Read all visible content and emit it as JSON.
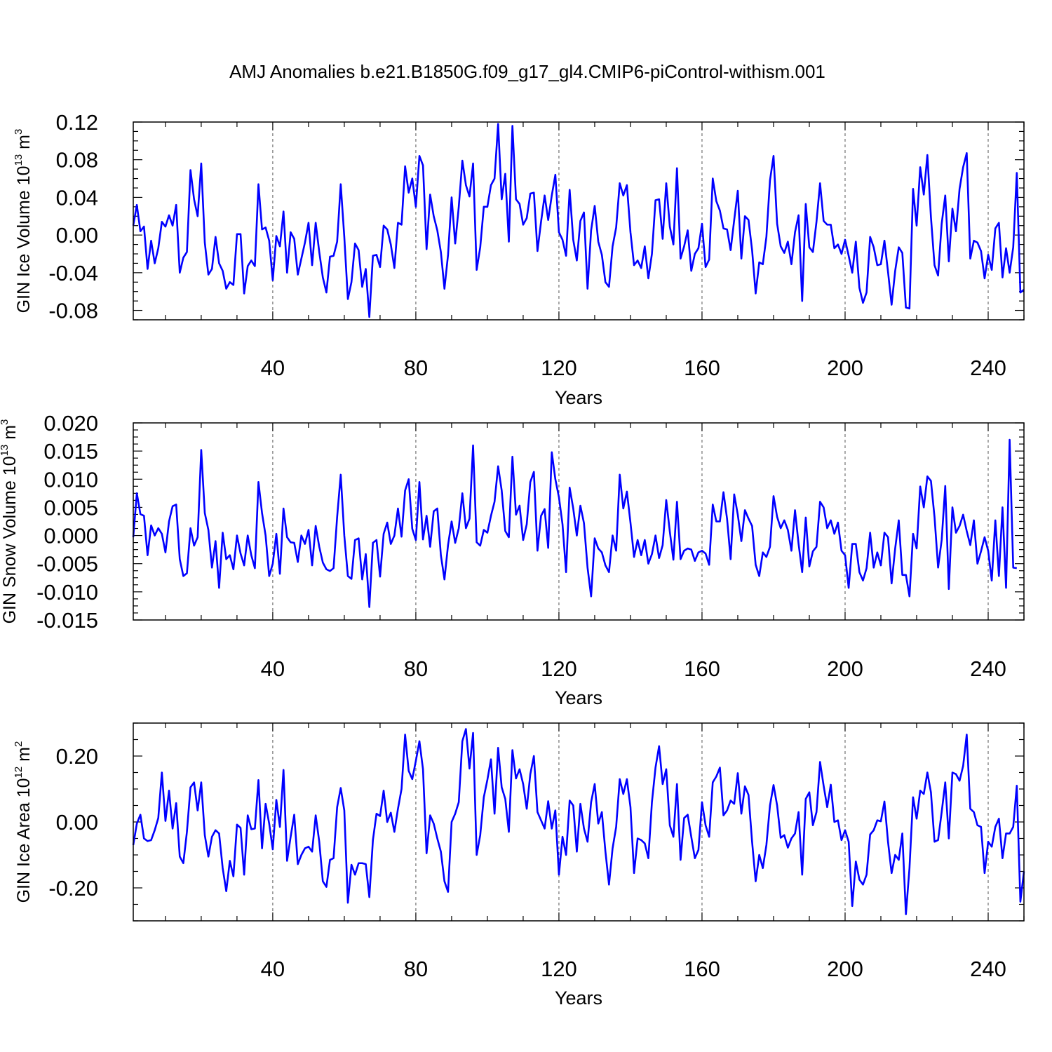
{
  "chart_data": [
    {
      "type": "line",
      "title": "AMJ Anomalies b.e21.B1850G.f09_g17_gl4.CMIP6-piControl-withism.001",
      "ylabel_prefix": "GIN Ice Volume 10",
      "ylabel_exp": "13",
      "ylabel_unit": " m",
      "ylabel_unit_exp": "3",
      "xlabel": "Years",
      "xlim": [
        1,
        250
      ],
      "ylim": [
        -0.09,
        0.12
      ],
      "xticks": [
        40,
        80,
        120,
        160,
        200,
        240
      ],
      "xticklabels": [
        "40",
        "80",
        "120",
        "160",
        "200",
        "240"
      ],
      "yticks": [
        -0.08,
        -0.04,
        0.0,
        0.04,
        0.08,
        0.12
      ],
      "yticklabels": [
        "-0.08",
        "-0.04",
        "0.00",
        "0.04",
        "0.08",
        "0.12"
      ],
      "series_name": "GIN Ice Volume anomaly",
      "color": "#0000ff",
      "x_start": 1,
      "values": [
        0.01,
        0.032,
        0.004,
        0.009,
        -0.036,
        -0.006,
        -0.03,
        -0.014,
        0.014,
        0.009,
        0.021,
        0.01,
        0.032,
        -0.04,
        -0.024,
        -0.018,
        0.069,
        0.038,
        0.02,
        0.076,
        -0.008,
        -0.042,
        -0.036,
        -0.002,
        -0.03,
        -0.038,
        -0.057,
        -0.05,
        -0.053,
        0.001,
        0.001,
        -0.062,
        -0.033,
        -0.027,
        -0.033,
        0.054,
        0.006,
        0.008,
        -0.006,
        -0.048,
        -0.001,
        -0.012,
        0.025,
        -0.04,
        0.003,
        -0.004,
        -0.042,
        -0.025,
        -0.008,
        0.013,
        -0.032,
        0.013,
        -0.018,
        -0.045,
        -0.061,
        -0.023,
        -0.022,
        -0.007,
        0.054,
        -0.002,
        -0.068,
        -0.05,
        -0.009,
        -0.016,
        -0.055,
        -0.036,
        -0.087,
        -0.022,
        -0.021,
        -0.034,
        0.01,
        0.006,
        -0.01,
        -0.035,
        0.013,
        0.011,
        0.073,
        0.045,
        0.06,
        0.03,
        0.084,
        0.074,
        -0.015,
        0.043,
        0.02,
        0.005,
        -0.018,
        -0.057,
        -0.021,
        0.04,
        -0.009,
        0.03,
        0.079,
        0.053,
        0.041,
        0.076,
        -0.037,
        -0.013,
        0.03,
        0.03,
        0.053,
        0.06,
        0.118,
        0.038,
        0.065,
        -0.007,
        0.116,
        0.038,
        0.033,
        0.011,
        0.018,
        0.044,
        0.045,
        -0.017,
        0.014,
        0.042,
        0.016,
        0.042,
        0.064,
        0.003,
        -0.005,
        -0.022,
        0.048,
        -0.005,
        -0.027,
        0.015,
        0.024,
        -0.057,
        0.005,
        0.031,
        -0.007,
        -0.021,
        -0.05,
        -0.055,
        -0.012,
        0.008,
        0.055,
        0.042,
        0.053,
        0.003,
        -0.032,
        -0.027,
        -0.035,
        -0.012,
        -0.046,
        -0.02,
        0.037,
        0.038,
        -0.004,
        0.055,
        0.009,
        -0.01,
        0.071,
        -0.025,
        -0.012,
        0.005,
        -0.038,
        -0.02,
        -0.014,
        0.012,
        -0.034,
        -0.026,
        0.06,
        0.036,
        0.026,
        0.007,
        0.006,
        -0.016,
        0.016,
        0.047,
        -0.025,
        0.02,
        0.016,
        -0.016,
        -0.062,
        -0.029,
        -0.031,
        -0.002,
        0.058,
        0.084,
        0.012,
        -0.012,
        -0.019,
        -0.007,
        -0.031,
        0.003,
        0.021,
        -0.07,
        0.033,
        -0.013,
        -0.018,
        0.014,
        0.055,
        0.015,
        0.011,
        0.011,
        -0.014,
        -0.01,
        -0.02,
        -0.005,
        -0.022,
        -0.04,
        -0.007,
        -0.056,
        -0.072,
        -0.061,
        -0.002,
        -0.013,
        -0.032,
        -0.031,
        -0.006,
        -0.039,
        -0.074,
        -0.038,
        -0.013,
        -0.019,
        -0.077,
        -0.078,
        0.049,
        0.01,
        0.072,
        0.043,
        0.085,
        0.019,
        -0.032,
        -0.043,
        0.012,
        0.042,
        -0.028,
        0.028,
        0.004,
        0.049,
        0.072,
        0.087,
        -0.025,
        -0.006,
        -0.008,
        -0.017,
        -0.046,
        -0.021,
        -0.037,
        0.007,
        0.013,
        -0.045,
        -0.014,
        -0.04,
        -0.013,
        0.066,
        -0.061,
        -0.058
      ]
    },
    {
      "type": "line",
      "ylabel_prefix": "GIN Snow Volume 10",
      "ylabel_exp": "13",
      "ylabel_unit": " m",
      "ylabel_unit_exp": "3",
      "xlabel": "Years",
      "xlim": [
        1,
        250
      ],
      "ylim": [
        -0.015,
        0.02
      ],
      "xticks": [
        40,
        80,
        120,
        160,
        200,
        240
      ],
      "xticklabels": [
        "40",
        "80",
        "120",
        "160",
        "200",
        "240"
      ],
      "yticks": [
        -0.015,
        -0.01,
        -0.005,
        0.0,
        0.005,
        0.01,
        0.015,
        0.02
      ],
      "yticklabels": [
        "-0.015",
        "-0.010",
        "-0.005",
        "0.000",
        "0.005",
        "0.010",
        "0.015",
        "0.020"
      ],
      "series_name": "GIN Snow Volume anomaly",
      "color": "#0000ff",
      "x_start": 1,
      "values": [
        -0.0003,
        0.0075,
        0.0038,
        0.0035,
        -0.0035,
        0.0018,
        0.0,
        0.0013,
        0.0003,
        -0.003,
        0.0025,
        0.0052,
        0.0055,
        -0.0042,
        -0.0072,
        -0.0067,
        0.0013,
        -0.0018,
        -0.0003,
        0.0152,
        0.004,
        0.001,
        -0.0057,
        -0.001,
        -0.0093,
        0.0005,
        -0.0042,
        -0.0035,
        -0.006,
        0.0,
        -0.0032,
        -0.0053,
        0.0,
        -0.0035,
        -0.0058,
        0.0095,
        0.004,
        0.0,
        -0.0072,
        -0.005,
        0.0003,
        -0.0068,
        0.0048,
        -0.0003,
        -0.0012,
        -0.0013,
        -0.0047,
        0.0,
        -0.0015,
        0.001,
        -0.0053,
        0.0017,
        -0.002,
        -0.0048,
        -0.006,
        -0.0063,
        -0.0058,
        0.0033,
        0.0108,
        0.0,
        -0.0072,
        -0.0077,
        -0.0008,
        -0.0005,
        -0.0078,
        -0.0033,
        -0.0127,
        -0.0013,
        -0.0008,
        -0.0073,
        0.0003,
        0.0023,
        -0.0015,
        0.0,
        0.0048,
        -0.0002,
        0.008,
        0.01,
        0.0012,
        -0.0008,
        0.0095,
        -0.0007,
        0.0035,
        -0.002,
        0.0043,
        0.0048,
        -0.0035,
        -0.0078,
        -0.0017,
        0.0025,
        -0.0013,
        0.0013,
        0.0075,
        0.0013,
        0.003,
        0.016,
        -0.0012,
        -0.0018,
        0.001,
        0.0005,
        0.0035,
        0.006,
        0.0123,
        0.008,
        0.0008,
        -0.0003,
        0.014,
        0.0037,
        0.0053,
        -0.0008,
        0.002,
        0.0095,
        0.0113,
        -0.0027,
        0.0035,
        0.0047,
        -0.0022,
        0.0148,
        0.01,
        0.0068,
        0.002,
        -0.0065,
        0.0085,
        0.0048,
        0.0,
        0.0053,
        0.0022,
        -0.0057,
        -0.0108,
        -0.0005,
        -0.0023,
        -0.003,
        -0.0053,
        -0.0065,
        0.0,
        -0.0027,
        0.0108,
        0.0048,
        0.0078,
        0.0023,
        -0.0038,
        -0.0008,
        -0.0035,
        -0.0008,
        -0.005,
        -0.0033,
        0.0,
        -0.004,
        -0.0017,
        0.0063,
        0.0007,
        -0.0043,
        0.006,
        -0.0042,
        -0.0027,
        -0.0023,
        -0.0025,
        -0.0045,
        -0.003,
        -0.0027,
        -0.0032,
        -0.0052,
        0.0055,
        0.0025,
        0.0025,
        0.0077,
        0.003,
        -0.0042,
        0.0073,
        0.0037,
        -0.001,
        0.0045,
        0.003,
        0.0017,
        -0.0052,
        -0.0072,
        -0.003,
        -0.0038,
        -0.002,
        0.007,
        0.0033,
        0.0013,
        0.0027,
        0.001,
        -0.0027,
        0.0045,
        -0.0015,
        -0.0065,
        0.0032,
        -0.0055,
        -0.0028,
        -0.002,
        0.006,
        0.005,
        0.0013,
        0.0027,
        0.0003,
        0.0023,
        -0.0027,
        -0.0035,
        -0.0093,
        -0.0015,
        -0.0015,
        -0.0065,
        -0.008,
        -0.0058,
        0.0005,
        -0.0057,
        -0.003,
        -0.0053,
        0.0005,
        -0.0003,
        -0.0085,
        -0.0023,
        0.0027,
        -0.007,
        -0.007,
        -0.0108,
        0.0003,
        -0.0023,
        0.0087,
        0.005,
        0.0105,
        0.0097,
        0.0033,
        -0.0057,
        -0.0008,
        0.0088,
        -0.0095,
        0.005,
        0.0005,
        0.0017,
        0.0037,
        0.0008,
        -0.0017,
        0.0027,
        -0.005,
        -0.0028,
        -0.0003,
        -0.0027,
        -0.008,
        0.0027,
        -0.0072,
        0.005,
        -0.0093,
        0.017,
        -0.0057,
        -0.0058
      ]
    },
    {
      "type": "line",
      "ylabel_prefix": "GIN Ice Area 10",
      "ylabel_exp": "12",
      "ylabel_unit": " m",
      "ylabel_unit_exp": "2",
      "xlabel": "Years",
      "xlim": [
        1,
        250
      ],
      "ylim": [
        -0.3,
        0.3
      ],
      "xticks": [
        40,
        80,
        120,
        160,
        200,
        240
      ],
      "xticklabels": [
        "40",
        "80",
        "120",
        "160",
        "200",
        "240"
      ],
      "yticks": [
        -0.2,
        0.0,
        0.2
      ],
      "yticklabels": [
        "-0.20",
        "0.00",
        "0.20"
      ],
      "series_name": "GIN Ice Area anomaly",
      "color": "#0000ff",
      "x_start": 1,
      "values": [
        -0.07,
        -0.005,
        0.022,
        -0.05,
        -0.058,
        -0.055,
        -0.025,
        0.012,
        0.15,
        0.003,
        0.095,
        -0.02,
        0.057,
        -0.105,
        -0.125,
        -0.03,
        0.105,
        0.12,
        0.035,
        0.12,
        -0.04,
        -0.105,
        -0.045,
        -0.025,
        -0.035,
        -0.14,
        -0.21,
        -0.118,
        -0.165,
        -0.008,
        -0.018,
        -0.16,
        0.02,
        -0.022,
        -0.02,
        0.127,
        -0.08,
        0.055,
        -0.005,
        -0.083,
        0.067,
        -0.015,
        0.158,
        -0.118,
        -0.045,
        0.022,
        -0.128,
        -0.1,
        -0.08,
        -0.075,
        -0.09,
        0.02,
        -0.06,
        -0.18,
        -0.197,
        -0.115,
        -0.11,
        0.045,
        0.103,
        0.035,
        -0.245,
        -0.13,
        -0.16,
        -0.125,
        -0.125,
        -0.128,
        -0.228,
        -0.055,
        0.025,
        0.018,
        0.095,
        0.0,
        0.028,
        -0.03,
        0.04,
        0.1,
        0.265,
        0.155,
        0.13,
        0.185,
        0.245,
        0.16,
        -0.095,
        0.02,
        -0.005,
        -0.05,
        -0.09,
        -0.18,
        -0.212,
        0.0,
        0.025,
        0.06,
        0.245,
        0.282,
        0.162,
        0.27,
        -0.1,
        -0.04,
        0.075,
        0.128,
        0.19,
        0.025,
        0.225,
        0.105,
        0.07,
        -0.03,
        0.218,
        0.132,
        0.16,
        0.115,
        0.04,
        0.145,
        0.2,
        0.03,
        0.005,
        -0.02,
        0.063,
        -0.02,
        0.035,
        -0.16,
        -0.045,
        -0.1,
        0.065,
        0.05,
        -0.09,
        0.055,
        -0.02,
        -0.06,
        0.06,
        0.115,
        -0.005,
        0.03,
        -0.09,
        -0.19,
        -0.08,
        -0.015,
        0.13,
        0.085,
        0.13,
        0.045,
        -0.155,
        -0.05,
        -0.055,
        -0.065,
        -0.11,
        0.06,
        0.165,
        0.23,
        0.115,
        0.16,
        -0.01,
        -0.045,
        0.115,
        -0.115,
        0.012,
        0.022,
        -0.045,
        -0.11,
        -0.085,
        0.06,
        -0.01,
        -0.045,
        0.12,
        0.138,
        0.165,
        0.02,
        0.035,
        0.065,
        0.055,
        0.148,
        0.025,
        0.108,
        0.082,
        -0.06,
        -0.18,
        -0.1,
        -0.14,
        -0.07,
        0.05,
        0.112,
        0.05,
        -0.048,
        -0.04,
        -0.078,
        -0.05,
        -0.035,
        0.03,
        -0.16,
        0.07,
        0.09,
        -0.01,
        0.03,
        0.182,
        0.11,
        0.045,
        0.113,
        0.0,
        0.005,
        -0.055,
        -0.025,
        -0.06,
        -0.255,
        -0.12,
        -0.175,
        -0.19,
        -0.16,
        -0.038,
        -0.025,
        0.005,
        0.002,
        0.062,
        -0.06,
        -0.155,
        -0.1,
        -0.115,
        -0.035,
        -0.28,
        -0.14,
        0.075,
        0.01,
        0.095,
        0.085,
        0.15,
        0.09,
        -0.06,
        -0.055,
        0.03,
        0.12,
        -0.05,
        0.15,
        0.145,
        0.125,
        0.17,
        0.265,
        0.04,
        0.03,
        -0.01,
        -0.015,
        -0.155,
        -0.06,
        -0.075,
        -0.015,
        0.01,
        -0.11,
        -0.035,
        -0.035,
        -0.015,
        0.11,
        -0.242,
        -0.15
      ]
    }
  ]
}
